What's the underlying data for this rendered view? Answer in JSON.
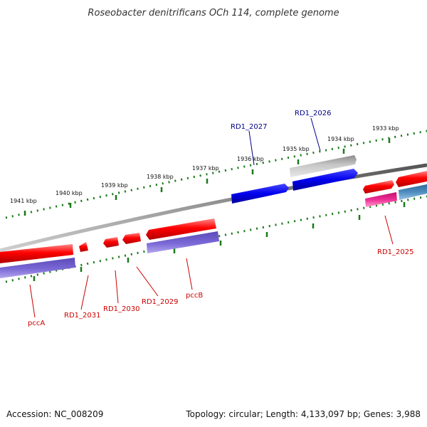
{
  "title": "Roseobacter denitrificans OCh 114, complete genome",
  "footer": {
    "accession": "Accession: NC_008209",
    "summary": "Topology: circular; Length: 4,133,097 bp; Genes: 3,988"
  },
  "scale_labels": [
    "1941 kbp",
    "1940 kbp",
    "1939 kbp",
    "1938 kbp",
    "1937 kbp",
    "1936 kbp",
    "1935 kbp",
    "1934 kbp",
    "1933 kbp"
  ],
  "gene_labels": [
    "RD1_2027",
    "RD1_2026",
    "RD1_2025",
    "pccA",
    "RD1_2031",
    "RD1_2030",
    "RD1_2029",
    "pccB"
  ],
  "colors": {
    "backbone": "#7f7f7f",
    "tick": "#1a7a1a",
    "red_gene": "#ee0000",
    "blue_gene": "#0000dd",
    "gray_gene": "#bdbdbd",
    "purple_gene": "#6a5acd",
    "pink_gene": "#e6268a",
    "steel_gene": "#4682b4",
    "label_red": "#cc0000",
    "label_blue": "#00008b"
  }
}
